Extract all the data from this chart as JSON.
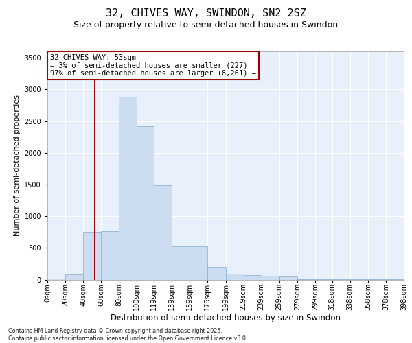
{
  "title": "32, CHIVES WAY, SWINDON, SN2 2SZ",
  "subtitle": "Size of property relative to semi-detached houses in Swindon",
  "xlabel": "Distribution of semi-detached houses by size in Swindon",
  "ylabel": "Number of semi-detached properties",
  "bar_color": "#ccddf2",
  "bar_edge_color": "#91b4d8",
  "background_color": "#e8f0fb",
  "annotation_text": "32 CHIVES WAY: 53sqm\n← 3% of semi-detached houses are smaller (227)\n97% of semi-detached houses are larger (8,261) →",
  "vline_x": 53,
  "vline_color": "#990000",
  "categories": [
    "0sqm",
    "20sqm",
    "40sqm",
    "60sqm",
    "80sqm",
    "100sqm",
    "119sqm",
    "139sqm",
    "159sqm",
    "179sqm",
    "199sqm",
    "219sqm",
    "239sqm",
    "259sqm",
    "279sqm",
    "299sqm",
    "318sqm",
    "338sqm",
    "358sqm",
    "378sqm",
    "398sqm"
  ],
  "bin_edges": [
    0,
    20,
    40,
    60,
    80,
    100,
    119,
    139,
    159,
    179,
    199,
    219,
    239,
    259,
    279,
    299,
    318,
    338,
    358,
    378,
    398
  ],
  "values": [
    12,
    85,
    750,
    760,
    2890,
    2420,
    1490,
    530,
    530,
    195,
    90,
    75,
    55,
    45,
    10,
    10,
    5,
    3,
    2,
    2,
    2
  ],
  "ylim": [
    0,
    3600
  ],
  "yticks": [
    0,
    500,
    1000,
    1500,
    2000,
    2500,
    3000,
    3500
  ],
  "footnote": "Contains HM Land Registry data © Crown copyright and database right 2025.\nContains public sector information licensed under the Open Government Licence v3.0.",
  "title_fontsize": 11,
  "subtitle_fontsize": 9,
  "tick_fontsize": 7,
  "ylabel_fontsize": 8,
  "xlabel_fontsize": 8.5,
  "annot_fontsize": 7.5
}
